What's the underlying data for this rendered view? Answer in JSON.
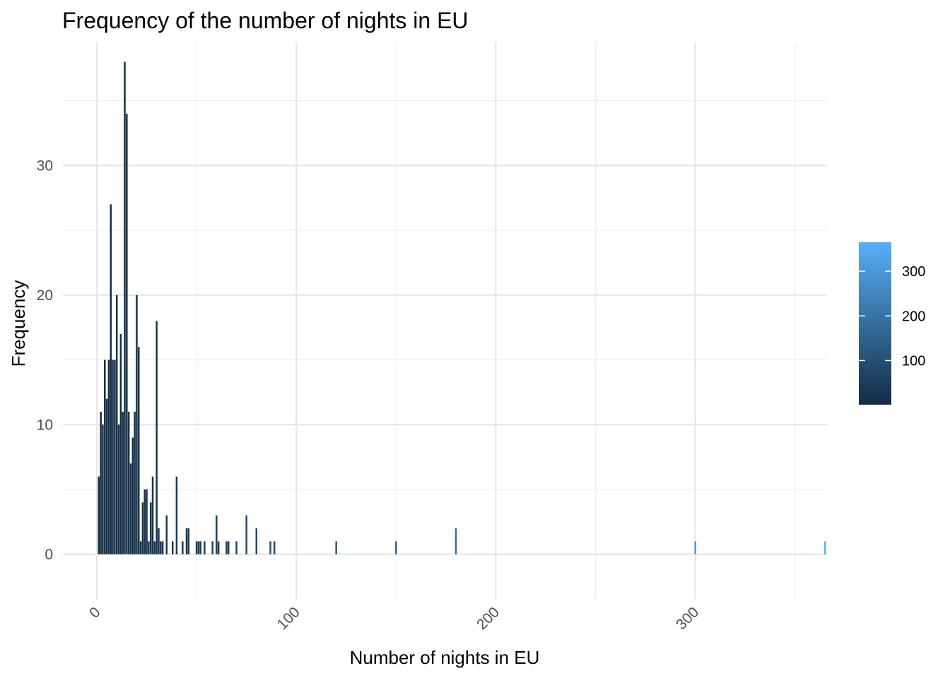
{
  "chart_data": {
    "type": "bar",
    "title": "Frequency of the number of nights in EU",
    "xlabel": "Number of nights in EU",
    "ylabel": "Frequency",
    "xlim": [
      -17,
      366
    ],
    "ylim": [
      -3.5,
      39.5
    ],
    "x_ticks": [
      0,
      100,
      200,
      300
    ],
    "x_minor_ticks": [
      50,
      150,
      250,
      350
    ],
    "y_ticks": [
      0,
      10,
      20,
      30
    ],
    "y_minor_ticks": [
      5,
      15,
      25,
      35
    ],
    "grid": true,
    "legend": {
      "position": "right",
      "type": "colorbar",
      "ticks": [
        100,
        200,
        300
      ],
      "range": [
        1,
        365
      ],
      "low_color": "#132B43",
      "high_color": "#56B1F7"
    },
    "bars": [
      {
        "x": 1,
        "y": 6
      },
      {
        "x": 2,
        "y": 11
      },
      {
        "x": 3,
        "y": 10
      },
      {
        "x": 4,
        "y": 15
      },
      {
        "x": 5,
        "y": 12
      },
      {
        "x": 6,
        "y": 15
      },
      {
        "x": 7,
        "y": 27
      },
      {
        "x": 8,
        "y": 15
      },
      {
        "x": 9,
        "y": 15
      },
      {
        "x": 10,
        "y": 20
      },
      {
        "x": 11,
        "y": 10
      },
      {
        "x": 12,
        "y": 17
      },
      {
        "x": 13,
        "y": 11
      },
      {
        "x": 14,
        "y": 38
      },
      {
        "x": 15,
        "y": 34
      },
      {
        "x": 16,
        "y": 11
      },
      {
        "x": 17,
        "y": 7
      },
      {
        "x": 18,
        "y": 9
      },
      {
        "x": 19,
        "y": 11
      },
      {
        "x": 20,
        "y": 20
      },
      {
        "x": 21,
        "y": 16
      },
      {
        "x": 22,
        "y": 1
      },
      {
        "x": 23,
        "y": 4
      },
      {
        "x": 24,
        "y": 5
      },
      {
        "x": 25,
        "y": 5
      },
      {
        "x": 26,
        "y": 1
      },
      {
        "x": 27,
        "y": 4
      },
      {
        "x": 28,
        "y": 6
      },
      {
        "x": 29,
        "y": 1
      },
      {
        "x": 30,
        "y": 18
      },
      {
        "x": 31,
        "y": 2
      },
      {
        "x": 32,
        "y": 1
      },
      {
        "x": 33,
        "y": 1
      },
      {
        "x": 35,
        "y": 3
      },
      {
        "x": 38,
        "y": 1
      },
      {
        "x": 40,
        "y": 6
      },
      {
        "x": 43,
        "y": 1
      },
      {
        "x": 45,
        "y": 2
      },
      {
        "x": 46,
        "y": 2
      },
      {
        "x": 50,
        "y": 1
      },
      {
        "x": 51,
        "y": 1
      },
      {
        "x": 52,
        "y": 1
      },
      {
        "x": 54,
        "y": 1
      },
      {
        "x": 58,
        "y": 1
      },
      {
        "x": 60,
        "y": 3
      },
      {
        "x": 61,
        "y": 1
      },
      {
        "x": 65,
        "y": 1
      },
      {
        "x": 66,
        "y": 1
      },
      {
        "x": 70,
        "y": 1
      },
      {
        "x": 75,
        "y": 3
      },
      {
        "x": 80,
        "y": 2
      },
      {
        "x": 87,
        "y": 1
      },
      {
        "x": 89,
        "y": 1
      },
      {
        "x": 120,
        "y": 1
      },
      {
        "x": 150,
        "y": 1
      },
      {
        "x": 180,
        "y": 2
      },
      {
        "x": 300,
        "y": 1
      },
      {
        "x": 365,
        "y": 1
      }
    ]
  }
}
